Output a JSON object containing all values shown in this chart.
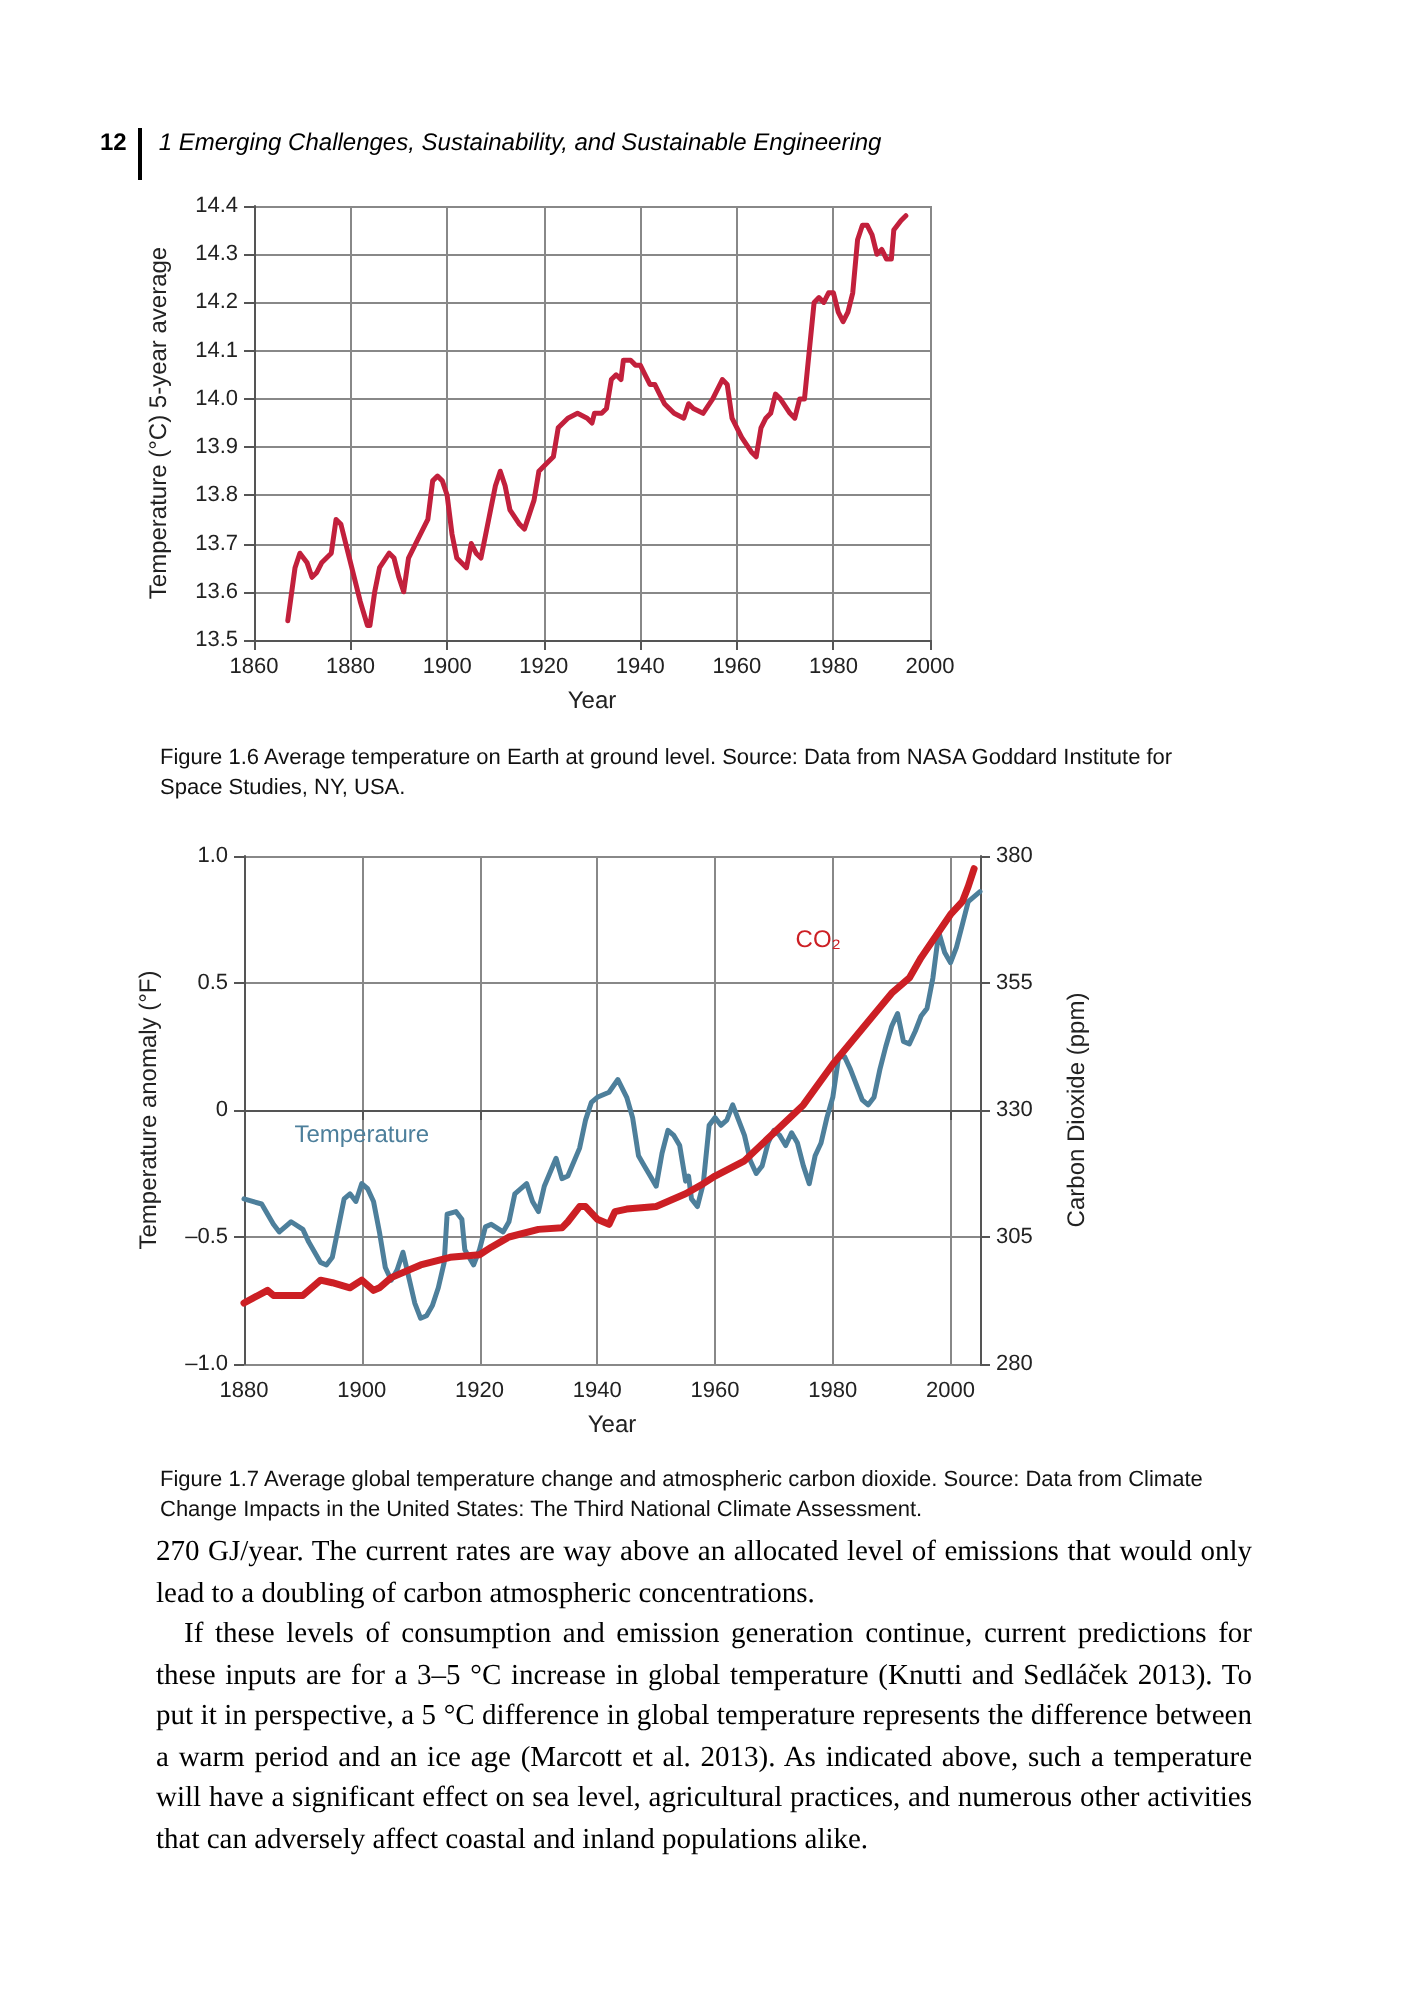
{
  "chart_data": [
    {
      "type": "line",
      "xlabel": "Year",
      "ylabel": "Temperature (°C) 5-year average",
      "xlim": [
        1860,
        2000
      ],
      "xticks": [
        1860,
        1880,
        1900,
        1920,
        1940,
        1960,
        1980,
        2000
      ],
      "ylim": [
        13.5,
        14.4
      ],
      "yticks": [
        13.5,
        13.6,
        13.7,
        13.8,
        13.9,
        {
          "value": 14,
          "label": "14.0"
        },
        14.1,
        14.2,
        14.3,
        14.4
      ],
      "grid": true,
      "marker": "none",
      "annotations": [
        "12",
        "1  Emerging Challenges, Sustainability, and Sustainable Engineering",
        "Figure 1.6  Average temperature on Earth at ground level. Source: Data from NASA Goddard Institute for Space Studies, NY, USA."
      ],
      "series": [
        {
          "color": "#c2203c",
          "x": [
            1867,
            1868.5,
            1869.5,
            1871,
            1872,
            1873,
            1874,
            1876,
            1877,
            1878,
            1879,
            1880,
            1882,
            1883.5,
            1884,
            1885,
            1886,
            1888,
            1889,
            1890,
            1891,
            1892,
            1894,
            1896,
            1897,
            1898,
            1899,
            1900,
            1901,
            1902,
            1904,
            1905,
            1906,
            1907,
            1908,
            1910,
            1911,
            1912,
            1913,
            1915,
            1916,
            1917,
            1918,
            1919,
            1921,
            1922,
            1923,
            1925,
            1927,
            1929,
            1930,
            1930.5,
            1932,
            1933,
            1934,
            1935,
            1936,
            1936.5,
            1938,
            1939,
            1940,
            1941,
            1942,
            1943,
            1944,
            1945,
            1947,
            1949,
            1950,
            1951,
            1953,
            1955,
            1957,
            1958,
            1959,
            1961,
            1963,
            1964,
            1965,
            1966,
            1967,
            1968,
            1969,
            1971,
            1972,
            1973,
            1974,
            1975,
            1976,
            1977,
            1978,
            1979,
            1980,
            1981,
            1982,
            1983,
            1984,
            1985,
            1986,
            1987,
            1988,
            1989,
            1990,
            1991,
            1992,
            1992.5,
            1994,
            1995
          ],
          "values": [
            13.54,
            13.65,
            13.68,
            13.66,
            13.63,
            13.64,
            13.66,
            13.68,
            13.75,
            13.74,
            13.7,
            13.66,
            13.58,
            13.53,
            13.53,
            13.6,
            13.65,
            13.68,
            13.67,
            13.63,
            13.6,
            13.67,
            13.71,
            13.75,
            13.83,
            13.84,
            13.83,
            13.8,
            13.72,
            13.67,
            13.65,
            13.7,
            13.68,
            13.67,
            13.72,
            13.82,
            13.85,
            13.82,
            13.77,
            13.74,
            13.73,
            13.76,
            13.79,
            13.85,
            13.87,
            13.88,
            13.94,
            13.96,
            13.97,
            13.96,
            13.95,
            13.97,
            13.97,
            13.98,
            14.04,
            14.05,
            14.04,
            14.08,
            14.08,
            14.07,
            14.07,
            14.05,
            14.03,
            14.03,
            14.01,
            13.99,
            13.97,
            13.96,
            13.99,
            13.98,
            13.97,
            14.0,
            14.04,
            14.03,
            13.96,
            13.92,
            13.89,
            13.88,
            13.94,
            13.96,
            13.97,
            14.01,
            14.0,
            13.97,
            13.96,
            14.0,
            14.0,
            14.1,
            14.2,
            14.21,
            14.2,
            14.22,
            14.22,
            14.18,
            14.16,
            14.18,
            14.22,
            14.33,
            14.36,
            14.36,
            14.34,
            14.3,
            14.31,
            14.29,
            14.29,
            14.35,
            14.37,
            14.38
          ]
        }
      ]
    },
    {
      "type": "line",
      "xlabel": "Year",
      "ylabel": "Temperature anomaly (°F)",
      "y2label": "Carbon Dioxide (ppm)",
      "xlim": [
        1880,
        2005
      ],
      "xticks": [
        1880,
        1900,
        1920,
        1940,
        1960,
        1980,
        2000
      ],
      "ylim": [
        -1,
        1
      ],
      "yticks": [
        {
          "value": -1,
          "label": "–1.0"
        },
        {
          "value": -0.5,
          "label": "–0.5"
        },
        0,
        0.5,
        {
          "value": 1,
          "label": "1.0"
        }
      ],
      "y2lim": [
        280,
        380
      ],
      "y2ticks": [
        280,
        305,
        330,
        355,
        380
      ],
      "grid": true,
      "marker": "none",
      "annotations": [
        "Figure 1.7  Average global temperature change and atmospheric carbon dioxide. Source: Data from Climate Change Impacts in the United States: The Third National Climate Assessment.",
        "270 GJ/year. The current rates are way above an allocated level of emissions that would only lead to a doubling of carbon atmospheric concentrations.",
        "If these levels of consumption and emission generation continue, current predictions for these inputs are for a 3–5 °C increase in global temperature (Knutti and Sedláček 2013). To put it in perspective, a 5 °C difference in global temperature represents the difference between a warm period and an ice age (Marcott et al. 2013). As indicated above, such a temperature will have a significant effect on sea level, agricultural practices, and numerous other activities that can adversely affect coastal and inland populations alike."
      ],
      "series": [
        {
          "name": "Temperature",
          "color": "#4d7f9b",
          "x": [
            1880,
            1883,
            1885,
            1886,
            1888,
            1890,
            1891,
            1893,
            1894,
            1895,
            1897,
            1898,
            1899,
            1900,
            1901,
            1902,
            1903,
            1904,
            1905,
            1906,
            1907,
            1908,
            1909,
            1910,
            1911,
            1912,
            1913,
            1914,
            1914.5,
            1916,
            1917,
            1917.5,
            1919,
            1920,
            1921,
            1922,
            1924,
            1925,
            1926,
            1928,
            1929,
            1930,
            1931,
            1933,
            1934,
            1935,
            1937,
            1938,
            1939,
            1940,
            1942,
            1943.5,
            1945,
            1946,
            1947,
            1948,
            1949,
            1950,
            1951,
            1952,
            1953,
            1954,
            1955,
            1955.5,
            1956,
            1957,
            1958,
            1959,
            1960,
            1961,
            1962,
            1963,
            1964,
            1965,
            1966,
            1967,
            1968,
            1969,
            1970,
            1971,
            1972,
            1973,
            1974,
            1975,
            1976,
            1977,
            1978,
            1979,
            1980,
            1981,
            1982,
            1983,
            1984,
            1985,
            1986,
            1987,
            1988,
            1989,
            1990,
            1991,
            1992,
            1993,
            1994,
            1995,
            1996,
            1997,
            1998,
            1999,
            2000,
            2001,
            2002,
            2003,
            2005
          ],
          "values": [
            -0.35,
            -0.37,
            -0.45,
            -0.48,
            -0.44,
            -0.47,
            -0.52,
            -0.6,
            -0.61,
            -0.58,
            -0.35,
            -0.33,
            -0.36,
            -0.29,
            -0.31,
            -0.36,
            -0.48,
            -0.62,
            -0.67,
            -0.63,
            -0.56,
            -0.66,
            -0.76,
            -0.82,
            -0.81,
            -0.77,
            -0.7,
            -0.6,
            -0.41,
            -0.4,
            -0.43,
            -0.55,
            -0.61,
            -0.55,
            -0.46,
            -0.45,
            -0.48,
            -0.44,
            -0.33,
            -0.29,
            -0.36,
            -0.4,
            -0.3,
            -0.19,
            -0.27,
            -0.26,
            -0.15,
            -0.04,
            0.03,
            0.05,
            0.07,
            0.12,
            0.05,
            -0.03,
            -0.18,
            -0.22,
            -0.26,
            -0.3,
            -0.17,
            -0.08,
            -0.1,
            -0.14,
            -0.28,
            -0.26,
            -0.35,
            -0.38,
            -0.29,
            -0.06,
            -0.03,
            -0.06,
            -0.04,
            0.02,
            -0.04,
            -0.1,
            -0.2,
            -0.25,
            -0.22,
            -0.13,
            -0.08,
            -0.1,
            -0.14,
            -0.09,
            -0.13,
            -0.22,
            -0.29,
            -0.18,
            -0.13,
            -0.03,
            0.05,
            0.21,
            0.21,
            0.16,
            0.1,
            0.04,
            0.02,
            0.05,
            0.16,
            0.25,
            0.33,
            0.38,
            0.27,
            0.26,
            0.31,
            0.37,
            0.4,
            0.52,
            0.7,
            0.62,
            0.58,
            0.64,
            0.73,
            0.82,
            0.86
          ]
        },
        {
          "name": "CO₂",
          "color": "#cc1f24",
          "axis": "y2",
          "x": [
            1880,
            1884,
            1885,
            1890,
            1893,
            1895,
            1898,
            1900,
            1902,
            1903,
            1905,
            1910,
            1915,
            1920,
            1922,
            1925,
            1930,
            1934,
            1935,
            1937,
            1938,
            1940,
            1942,
            1943,
            1945,
            1950,
            1955,
            1958,
            1960,
            1965,
            1970,
            1975,
            1980,
            1985,
            1990,
            1993,
            1995,
            2000,
            2002,
            2003,
            2004
          ],
          "values": [
            292,
            294.5,
            293.5,
            293.5,
            296.5,
            296,
            295,
            296.5,
            294.5,
            295,
            297,
            299.5,
            301,
            301.5,
            303,
            305,
            306.5,
            306.8,
            308,
            311,
            311,
            308.5,
            307.5,
            310,
            310.5,
            311,
            313.5,
            315.5,
            317,
            320,
            325.5,
            331,
            339,
            346,
            353,
            356,
            360,
            368.5,
            371,
            374,
            377.5
          ]
        }
      ]
    }
  ]
}
